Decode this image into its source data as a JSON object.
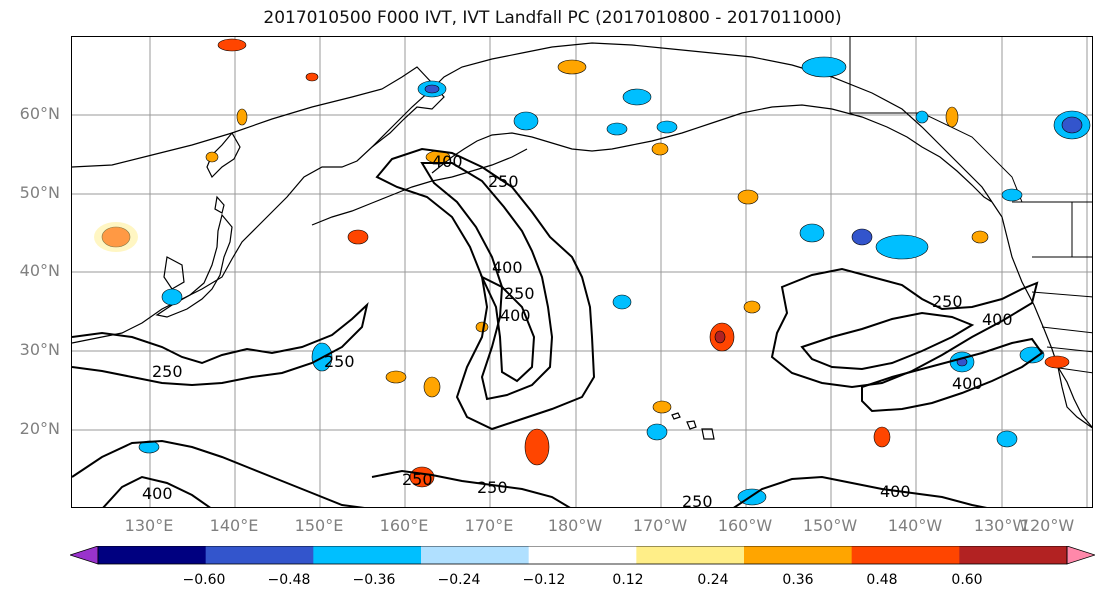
{
  "title": "2017010500 F000 IVT, IVT Landfall PC (2017010800 - 2017011000)",
  "lat_labels": [
    "60°N",
    "50°N",
    "40°N",
    "30°N",
    "20°N"
  ],
  "lon_labels": [
    "130°E",
    "140°E",
    "150°E",
    "160°E",
    "170°E",
    "180°W",
    "170°W",
    "160°W",
    "150°W",
    "140°W",
    "130°W",
    "120°W"
  ],
  "contour_labels": [
    "400",
    "250",
    "400",
    "250",
    "400",
    "250",
    "250",
    "400",
    "400",
    "250",
    "250",
    "250",
    "400",
    "250",
    "400"
  ],
  "colorbar": {
    "colors": [
      "#9933cc",
      "#000080",
      "#3355cc",
      "#00bfff",
      "#b0e0ff",
      "#ffffff",
      "#ffee88",
      "#ffa500",
      "#ff4500",
      "#b22222",
      "#ff88aa"
    ],
    "tick_labels": [
      "−0.60",
      "−0.48",
      "−0.36",
      "−0.24",
      "−0.12",
      "0.12",
      "0.24",
      "0.36",
      "0.48",
      "0.60"
    ]
  }
}
